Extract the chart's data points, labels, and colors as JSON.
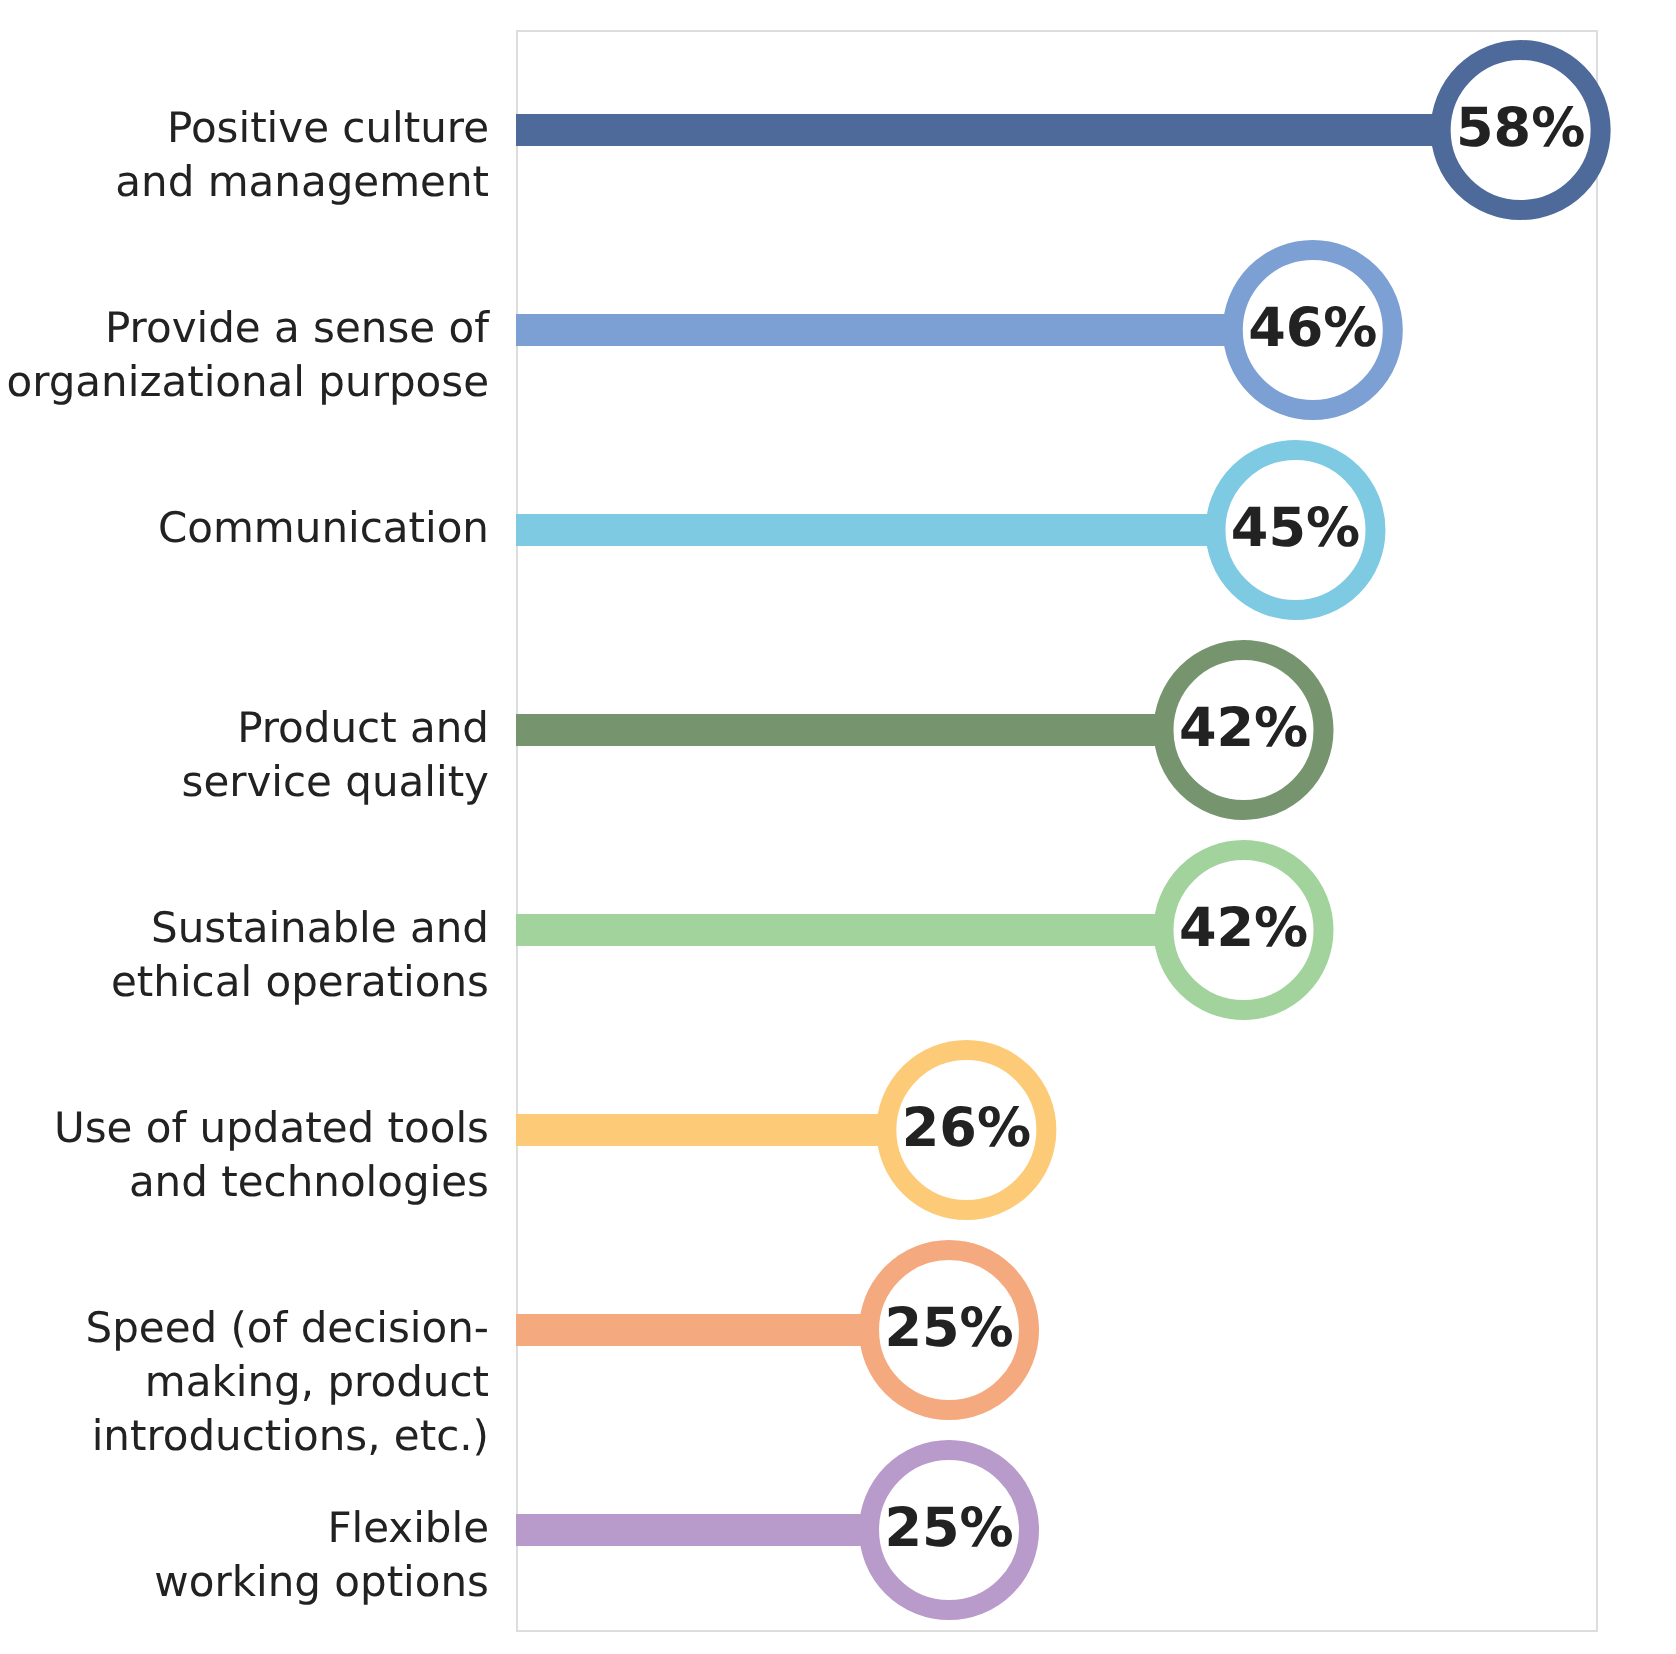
{
  "chart_data": {
    "type": "lollipop",
    "orientation": "horizontal",
    "data_labels": true,
    "grid": false,
    "categories": [
      "Positive culture\nand management",
      "Provide a sense of\norganizational purpose",
      "Communication",
      "Product and\nservice quality",
      "Sustainable and\nethical operations",
      "Use of updated tools\nand technologies",
      "Speed (of decision-\nmaking, product\nintroductions, etc.)",
      "Flexible\nworking options"
    ],
    "values": [
      58,
      46,
      45,
      42,
      42,
      26,
      25,
      25
    ],
    "value_labels": [
      "58%",
      "46%",
      "45%",
      "42%",
      "42%",
      "26%",
      "25%",
      "25%"
    ],
    "colors": [
      "#4e6a9a",
      "#7c9fd4",
      "#7ecae3",
      "#76956e",
      "#a3d39c",
      "#fdcb77",
      "#f5a97f",
      "#b89bcb"
    ]
  }
}
